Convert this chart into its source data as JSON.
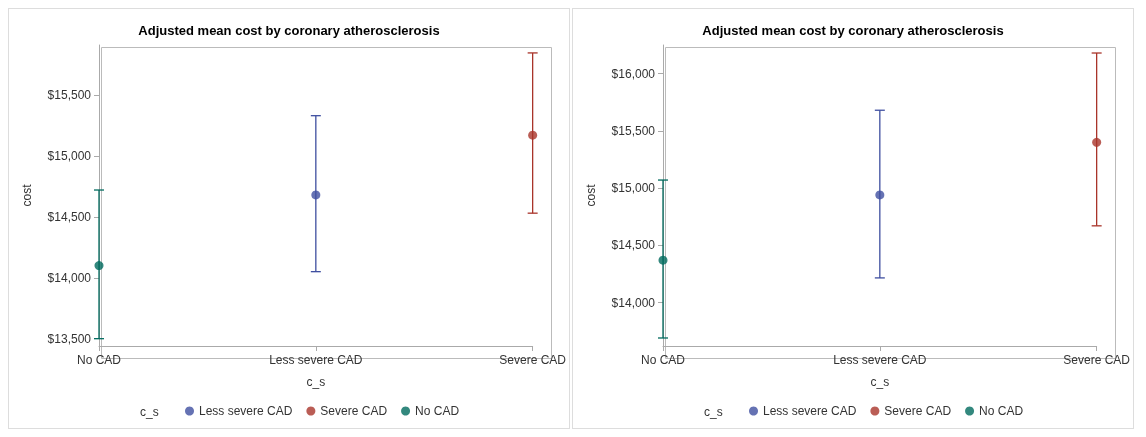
{
  "chart_data": [
    {
      "type": "scatter",
      "title": "Adjusted mean cost by coronary atherosclerosis",
      "xlabel": "c_s",
      "ylabel": "cost",
      "legend_title": "c_s",
      "categories": [
        "No CAD",
        "Less severe CAD",
        "Severe CAD"
      ],
      "ylim": [
        13440,
        15910
      ],
      "yticks": [
        {
          "value": 13500,
          "label": "$13,500"
        },
        {
          "value": 14000,
          "label": "$14,000"
        },
        {
          "value": 14500,
          "label": "$14,500"
        },
        {
          "value": 15000,
          "label": "$15,000"
        },
        {
          "value": 15500,
          "label": "$15,500"
        }
      ],
      "grid": false,
      "legend": "bottom",
      "marker": "circle",
      "series": [
        {
          "name": "Less severe CAD",
          "color": "#3f4fa0",
          "values": [
            null,
            14680,
            null
          ],
          "errors": [
            null,
            [
              14050,
              15330
            ],
            null
          ]
        },
        {
          "name": "Severe CAD",
          "color": "#a9342a",
          "values": [
            null,
            null,
            15170
          ],
          "errors": [
            null,
            null,
            [
              14530,
              15845
            ]
          ]
        },
        {
          "name": "No CAD",
          "color": "#006a5e",
          "values": [
            14100,
            null,
            null
          ],
          "errors": [
            [
              13500,
              14720
            ],
            null,
            null
          ]
        }
      ]
    },
    {
      "type": "scatter",
      "title": "Adjusted mean cost by coronary atherosclerosis",
      "xlabel": "c_s",
      "ylabel": "cost",
      "legend_title": "c_s",
      "categories": [
        "No CAD",
        "Less severe CAD",
        "Severe CAD"
      ],
      "ylim": [
        13620,
        16250
      ],
      "yticks": [
        {
          "value": 14000,
          "label": "$14,000"
        },
        {
          "value": 14500,
          "label": "$14,500"
        },
        {
          "value": 15000,
          "label": "$15,000"
        },
        {
          "value": 15500,
          "label": "$15,500"
        },
        {
          "value": 16000,
          "label": "$16,000"
        }
      ],
      "grid": false,
      "legend": "bottom",
      "marker": "circle",
      "series": [
        {
          "name": "Less severe CAD",
          "color": "#3f4fa0",
          "values": [
            null,
            14940,
            null
          ],
          "errors": [
            null,
            [
              14215,
              15680
            ],
            null
          ]
        },
        {
          "name": "Severe CAD",
          "color": "#a9342a",
          "values": [
            null,
            null,
            15400
          ],
          "errors": [
            null,
            null,
            [
              14670,
              16180
            ]
          ]
        },
        {
          "name": "No CAD",
          "color": "#006a5e",
          "values": [
            14370,
            null,
            null
          ],
          "errors": [
            [
              13690,
              15070
            ],
            null,
            null
          ]
        }
      ]
    }
  ]
}
